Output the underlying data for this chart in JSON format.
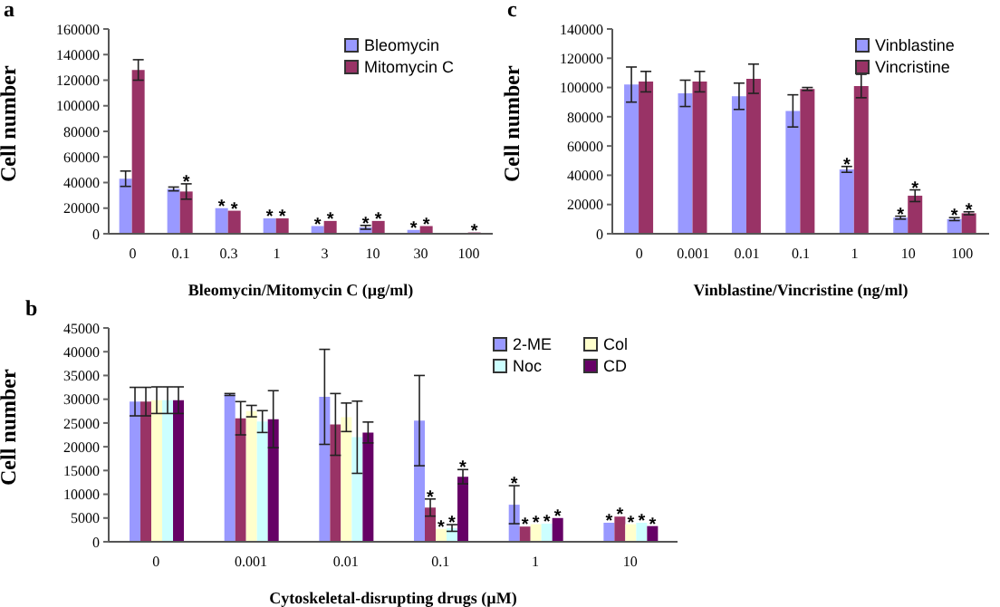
{
  "chart_data": [
    {
      "type": "bar",
      "title": "a",
      "xlabel": "Bleomycin/Mitomycin C (µg/ml)",
      "ylabel": "Cell number",
      "categories": [
        "0",
        "0.1",
        "0.3",
        "1",
        "3",
        "10",
        "30",
        "100"
      ],
      "ylim": [
        0,
        160000
      ],
      "yticks": [
        0,
        20000,
        40000,
        60000,
        80000,
        100000,
        120000,
        140000,
        160000
      ],
      "legend": "top right",
      "series": [
        {
          "name": "Bleomycin",
          "color": "#9999ff",
          "values": [
            43000,
            35000,
            20000,
            12000,
            6000,
            5000,
            3000,
            null
          ],
          "errors": [
            6000,
            1500,
            null,
            null,
            null,
            1500,
            null,
            null
          ],
          "value_labels": [
            null,
            null,
            "*",
            "*",
            "*",
            "*",
            "*",
            null
          ]
        },
        {
          "name": "Mitomycin C",
          "color": "#993366",
          "values": [
            128000,
            33000,
            18000,
            12000,
            10000,
            10000,
            6000,
            1000
          ],
          "errors": [
            8000,
            6000,
            null,
            null,
            null,
            null,
            null,
            null
          ],
          "value_labels": [
            null,
            "*",
            "*",
            "*",
            "*",
            "*",
            "*",
            "*"
          ]
        }
      ]
    },
    {
      "type": "bar",
      "title": "c",
      "xlabel": "Vinblastine/Vincristine (ng/ml)",
      "ylabel": "Cell number",
      "categories": [
        "0",
        "0.001",
        "0.01",
        "0.1",
        "1",
        "10",
        "100"
      ],
      "ylim": [
        0,
        140000
      ],
      "yticks": [
        0,
        20000,
        40000,
        60000,
        80000,
        100000,
        120000,
        140000
      ],
      "legend": "top right",
      "series": [
        {
          "name": "Vinblastine",
          "color": "#9999ff",
          "values": [
            102000,
            96000,
            94000,
            84000,
            44000,
            11000,
            10000
          ],
          "errors": [
            12000,
            9000,
            9000,
            11000,
            2000,
            1000,
            1000
          ],
          "value_labels": [
            null,
            null,
            null,
            null,
            "*",
            "*",
            "*"
          ]
        },
        {
          "name": "Vincristine",
          "color": "#993366",
          "values": [
            104000,
            104000,
            106000,
            99000,
            101000,
            26000,
            14000
          ],
          "errors": [
            7000,
            7000,
            10000,
            1000,
            8000,
            4000,
            1000
          ],
          "value_labels": [
            null,
            null,
            null,
            null,
            null,
            "*",
            "*"
          ]
        }
      ]
    },
    {
      "type": "bar",
      "title": "b",
      "xlabel": "Cytoskeletal-disrupting drugs (µM)",
      "ylabel": "Cell number",
      "categories": [
        "0",
        "0.001",
        "0.01",
        "0.1",
        "1",
        "10"
      ],
      "ylim": [
        0,
        45000
      ],
      "yticks": [
        0,
        5000,
        10000,
        15000,
        20000,
        25000,
        30000,
        35000,
        40000,
        45000
      ],
      "legend": "top right",
      "series": [
        {
          "name": "2-ME",
          "color": "#9999ff",
          "values": [
            29500,
            31000,
            30500,
            25500,
            7800,
            4000
          ],
          "errors": [
            3000,
            200,
            10000,
            9500,
            4000,
            null
          ],
          "value_labels": [
            null,
            null,
            null,
            null,
            "*",
            "*"
          ]
        },
        {
          "color": "#993366",
          "values": [
            29500,
            26000,
            24700,
            7200,
            3200,
            5300
          ],
          "errors": [
            3000,
            3500,
            6500,
            1800,
            null,
            null
          ],
          "value_labels": [
            null,
            null,
            null,
            "*",
            "*",
            "*"
          ]
        },
        {
          "name": "Col",
          "color": "#ffffcc",
          "values": [
            29800,
            27500,
            26200,
            2700,
            3700,
            3700
          ],
          "errors": [
            2800,
            1200,
            3000,
            null,
            null,
            null
          ],
          "value_labels": [
            null,
            null,
            null,
            "*",
            "*",
            "*"
          ]
        },
        {
          "name": "Noc",
          "color": "#ccffff",
          "values": [
            29800,
            25300,
            22000,
            2900,
            3800,
            4000
          ],
          "errors": [
            2800,
            2300,
            7600,
            700,
            null,
            null
          ],
          "value_labels": [
            null,
            null,
            null,
            "*",
            "*",
            "*"
          ]
        },
        {
          "name": "CD",
          "color": "#660066",
          "values": [
            29800,
            25800,
            23000,
            13700,
            5000,
            3300
          ],
          "errors": [
            2800,
            6000,
            2200,
            1500,
            null,
            null
          ],
          "value_labels": [
            null,
            null,
            null,
            "*",
            "*",
            "*"
          ]
        }
      ]
    }
  ]
}
